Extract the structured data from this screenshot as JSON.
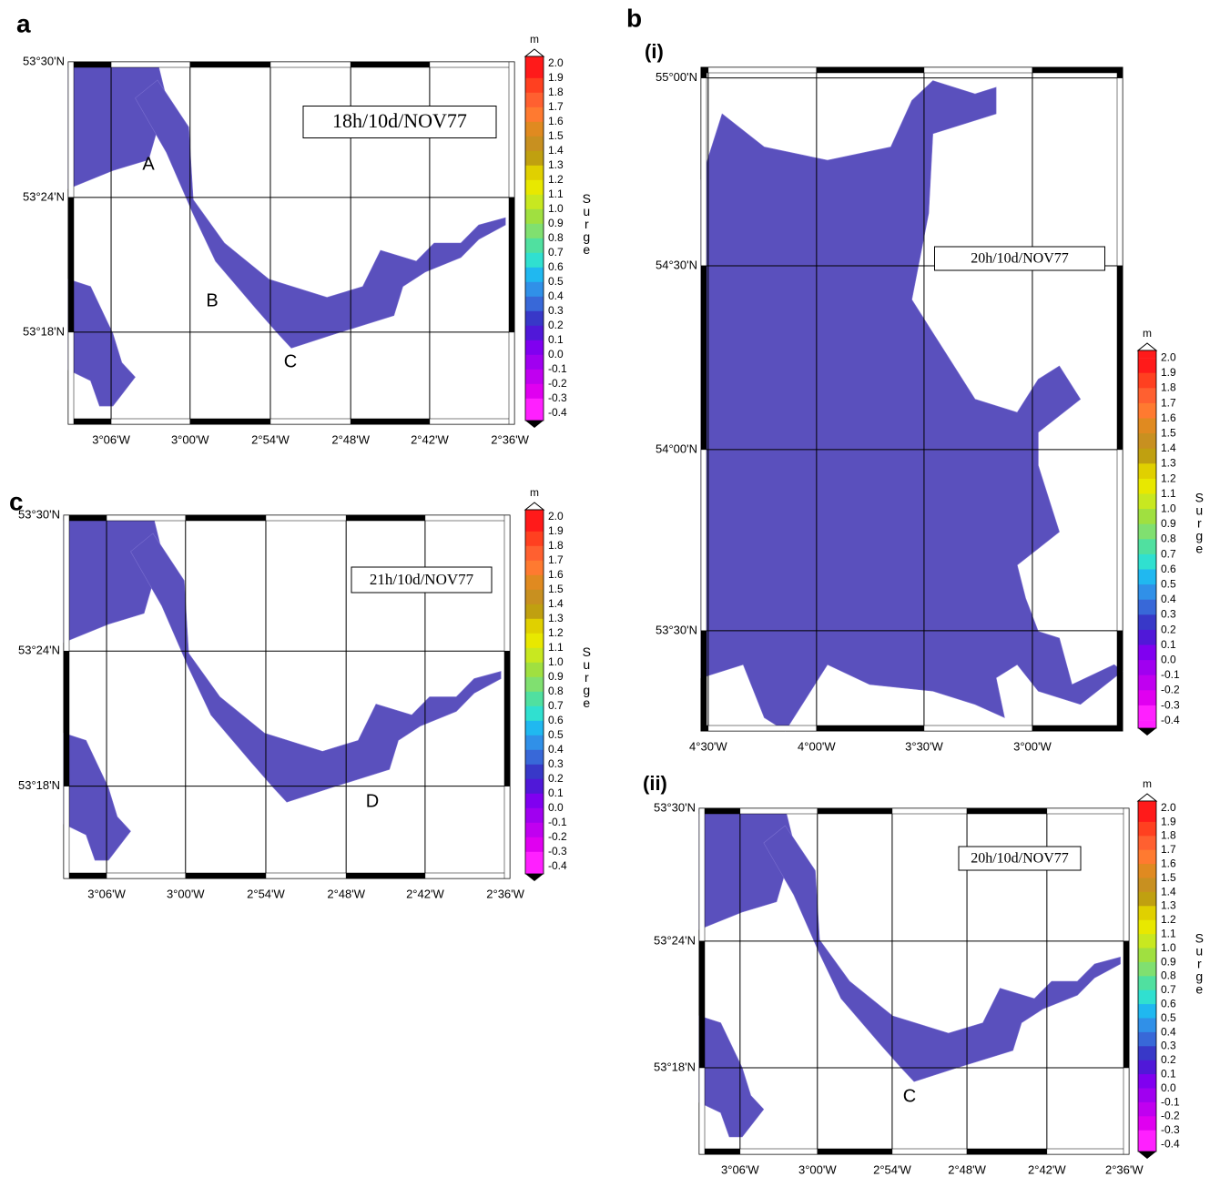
{
  "maps": [
    {
      "panel_label": "a",
      "time_label": "18h/10d/NOV77",
      "lat_labels": [
        "53°30'N",
        "53°24'N",
        "53°18'N"
      ],
      "lon_labels": [
        "3°06'W",
        "3°00'W",
        "2°54'W",
        "2°48'W",
        "2°42'W",
        "2°36'W"
      ],
      "point_labels": [
        "A",
        "B",
        "C"
      ]
    },
    {
      "panel_label": "c",
      "time_label": "21h/10d/NOV77",
      "lat_labels": [
        "53°30'N",
        "53°24'N",
        "53°18'N"
      ],
      "lon_labels": [
        "3°06'W",
        "3°00'W",
        "2°54'W",
        "2°48'W",
        "2°42'W",
        "2°36'W"
      ],
      "point_labels": [
        "D"
      ]
    },
    {
      "panel_label": "b",
      "sub_label": "(i)",
      "time_label": "20h/10d/NOV77",
      "lat_labels": [
        "55°00'N",
        "54°30'N",
        "54°00'N",
        "53°30'N"
      ],
      "lon_labels": [
        "4°30'W",
        "4°00'W",
        "3°30'W",
        "3°00'W"
      ]
    },
    {
      "sub_label": "(ii)",
      "time_label": "20h/10d/NOV77",
      "lat_labels": [
        "53°30'N",
        "53°24'N",
        "53°18'N"
      ],
      "lon_labels": [
        "3°06'W",
        "3°00'W",
        "2°54'W",
        "2°48'W",
        "2°42'W",
        "2°36'W"
      ],
      "point_labels": [
        "C"
      ]
    }
  ],
  "colorbar": {
    "unit": "m",
    "title": "Surge",
    "tick_labels": [
      "2.0",
      "1.9",
      "1.8",
      "1.7",
      "1.6",
      "1.5",
      "1.4",
      "1.3",
      "1.2",
      "1.1",
      "1.0",
      "0.9",
      "0.8",
      "0.7",
      "0.6",
      "0.5",
      "0.4",
      "0.3",
      "0.2",
      "0.1",
      "0.0",
      "-0.1",
      "-0.2",
      "-0.3",
      "-0.4"
    ]
  }
}
